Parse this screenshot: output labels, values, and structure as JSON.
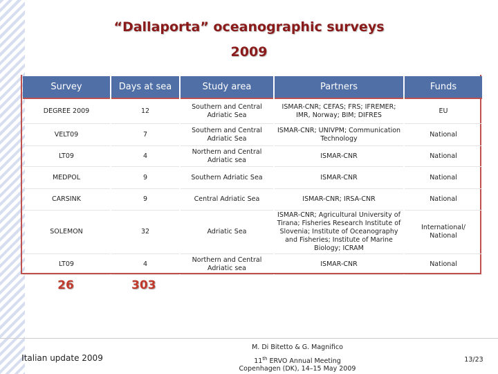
{
  "header": {
    "title": "“Dallaporta” oceanographic surveys",
    "year": "2009"
  },
  "table": {
    "columns": [
      "Survey",
      "Days at sea",
      "Study area",
      "Partners",
      "Funds"
    ],
    "rows": [
      [
        "DEGREE 2009",
        "12",
        "Southern and Central Adriatic Sea",
        "ISMAR-CNR; CEFAS; FRS; IFREMER; IMR, Norway; BIM; DIFRES",
        "EU"
      ],
      [
        "VELT09",
        "7",
        "Southern and Central Adriatic Sea",
        "ISMAR-CNR; UNIVPM; Communication Technology",
        "National"
      ],
      [
        "LT09",
        "4",
        "Northern and Central Adriatic sea",
        "ISMAR-CNR",
        "National"
      ],
      [
        "MEDPOL",
        "9",
        "Southern Adriatic Sea",
        "ISMAR-CNR",
        "National"
      ],
      [
        "CARSINK",
        "9",
        "Central Adriatic Sea",
        "ISMAR-CNR; IRSA-CNR",
        "National"
      ],
      [
        "SOLEMON",
        "32",
        "Adriatic Sea",
        "ISMAR-CNR; Agricultural University of Tirana; Fisheries Research Institute of Slovenia; Institute of Oceanography and Fisheries; Institute of Marine Biology; ICRAM",
        "International/ National"
      ],
      [
        "LT09",
        "4",
        "Northern and Central Adriatic sea",
        "ISMAR-CNR",
        "National"
      ]
    ],
    "totals": {
      "surveys": "26",
      "days": "303"
    }
  },
  "footer": {
    "left": "Italian update 2009",
    "authors": "M. Di Bitetto & G. Magnifico",
    "meeting": {
      "number": "11",
      "suffix": "th",
      "rest": " ERVO Annual Meeting"
    },
    "place": "Copenhagen (DK), 14–15 May 2009",
    "page": "13/23"
  }
}
